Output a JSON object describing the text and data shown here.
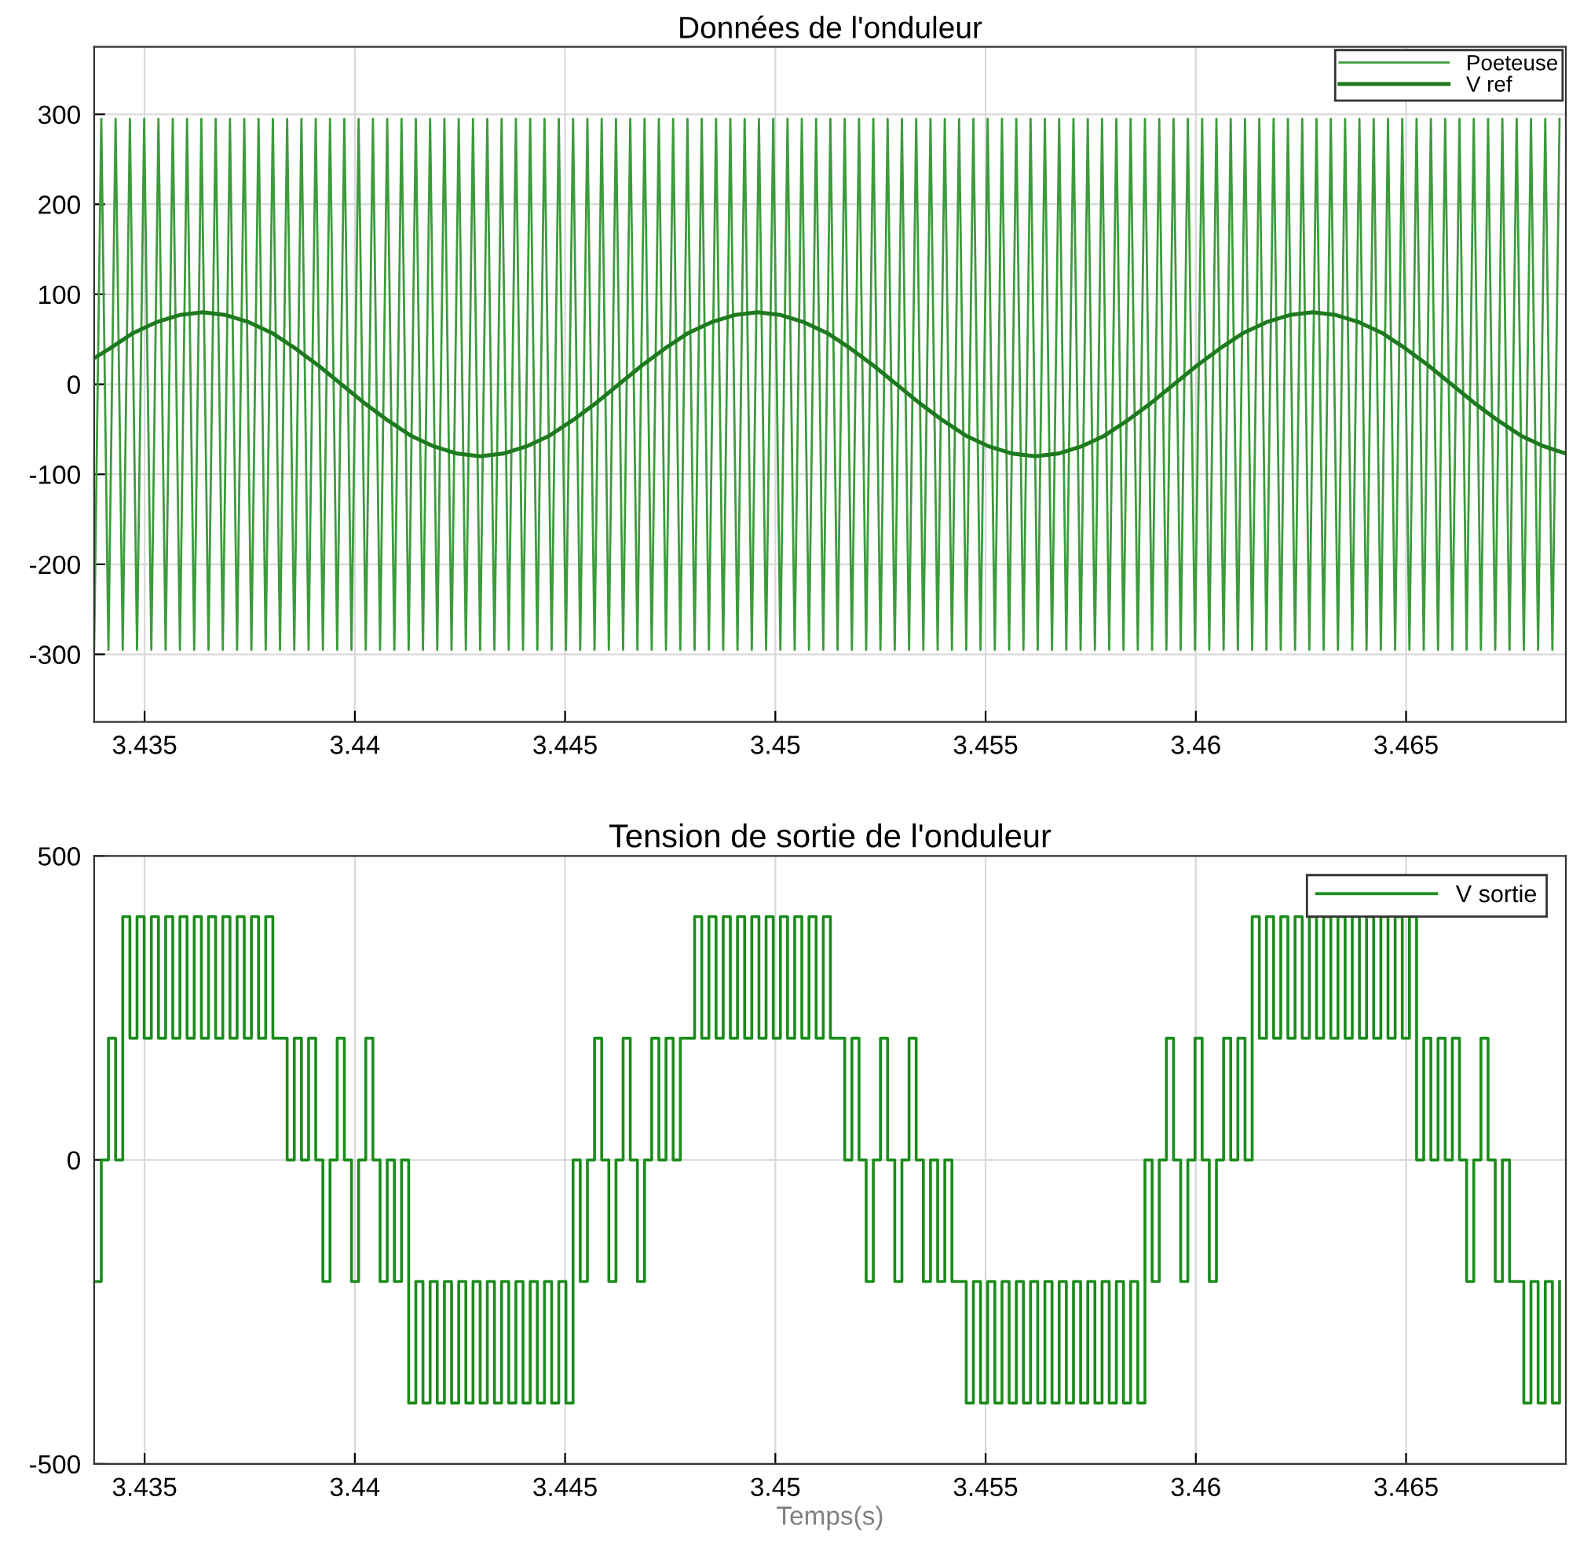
{
  "chart_data": [
    {
      "type": "line",
      "title": "Données de l'onduleur",
      "xlim": [
        3.4338,
        3.4688
      ],
      "xticks": [
        3.435,
        3.44,
        3.445,
        3.45,
        3.455,
        3.46,
        3.465
      ],
      "ylim": [
        -375,
        375
      ],
      "yticks": [
        -300,
        -200,
        -100,
        0,
        100,
        200,
        300
      ],
      "grid": true,
      "legend": "top right",
      "x": [
        3.4338,
        3.43397,
        3.43414,
        3.43431,
        3.43448,
        3.43465,
        3.43482,
        3.43499,
        3.43516,
        3.43533,
        3.4355,
        3.43567,
        3.43584,
        3.43601,
        3.43618,
        3.43635,
        3.43652,
        3.43669,
        3.43686,
        3.43703,
        3.4372,
        3.43737,
        3.43754,
        3.43771,
        3.43788,
        3.43805,
        3.43822,
        3.43839,
        3.43856,
        3.43873,
        3.4389,
        3.43907,
        3.43924,
        3.43941,
        3.43958,
        3.43975,
        3.43992,
        3.44009,
        3.44026,
        3.44043,
        3.4406,
        3.44077,
        3.44094,
        3.44111,
        3.44128,
        3.44145,
        3.44162,
        3.44179,
        3.44196,
        3.44213,
        3.4423,
        3.44247,
        3.44264,
        3.44281,
        3.44298,
        3.44315,
        3.44332,
        3.44349,
        3.44366,
        3.44383,
        3.444,
        3.44417,
        3.44434,
        3.44451,
        3.44468,
        3.44485,
        3.44502,
        3.44519,
        3.44536,
        3.44553,
        3.4457,
        3.44587,
        3.44604,
        3.44621,
        3.44638,
        3.44655,
        3.44672,
        3.44689,
        3.44706,
        3.44723,
        3.4474,
        3.44757,
        3.44774,
        3.44791,
        3.44808,
        3.44825,
        3.44842,
        3.44859,
        3.44876,
        3.44893,
        3.4491,
        3.44927,
        3.44944,
        3.44961,
        3.44978,
        3.44995,
        3.45012,
        3.45029,
        3.45046,
        3.45063,
        3.4508,
        3.45097,
        3.45114,
        3.45131,
        3.45148,
        3.45165,
        3.45182,
        3.45199,
        3.45216,
        3.45233,
        3.4525,
        3.45267,
        3.45284,
        3.45301,
        3.45318,
        3.45335,
        3.45352,
        3.45369,
        3.45386,
        3.45403,
        3.4542,
        3.45437,
        3.45454,
        3.45471,
        3.45488,
        3.45505,
        3.45522,
        3.45539,
        3.45556,
        3.45573,
        3.4559,
        3.45607,
        3.45624,
        3.45641,
        3.45658,
        3.45675,
        3.45692,
        3.45709,
        3.45726,
        3.45743,
        3.4576,
        3.45777,
        3.45794,
        3.45811,
        3.45828,
        3.45845,
        3.45862,
        3.45879,
        3.45896,
        3.45913,
        3.4593,
        3.45947,
        3.45964,
        3.45981,
        3.45998,
        3.46015,
        3.46032,
        3.46049,
        3.46066,
        3.46083,
        3.461,
        3.46117,
        3.46134,
        3.46151,
        3.46168,
        3.46185,
        3.46202,
        3.46219,
        3.46236,
        3.46253,
        3.4627,
        3.46287,
        3.46304,
        3.46321,
        3.46338,
        3.46355,
        3.46372,
        3.46389,
        3.46406,
        3.46423,
        3.4644,
        3.46457,
        3.46474,
        3.46491,
        3.46508,
        3.46525,
        3.46542,
        3.46559,
        3.46576,
        3.46593,
        3.4661,
        3.46627,
        3.46644,
        3.46661,
        3.46678,
        3.46695,
        3.46712,
        3.46729,
        3.46746,
        3.46763,
        3.4678,
        3.46797,
        3.46814,
        3.46831,
        3.46848,
        3.46865
      ],
      "series": [
        {
          "name": "Poeteuse",
          "color": "#3c9c3c",
          "values": [
            -295,
            295,
            -295,
            295,
            -295,
            295,
            -295,
            295,
            -295,
            295,
            -295,
            295,
            -295,
            295,
            -295,
            295,
            -295,
            295,
            -295,
            295,
            -295,
            295,
            -295,
            295,
            -295,
            295,
            -295,
            295,
            -295,
            295,
            -295,
            295,
            -295,
            295,
            -295,
            295,
            -295,
            295,
            -295,
            295,
            -295,
            295,
            -295,
            295,
            -295,
            295,
            -295,
            295,
            -295,
            295,
            -295,
            295,
            -295,
            295,
            -295,
            295,
            -295,
            295,
            -295,
            295,
            -295,
            295,
            -295,
            295,
            -295,
            295,
            -295,
            295,
            -295,
            295,
            -295,
            295,
            -295,
            295,
            -295,
            295,
            -295,
            295,
            -295,
            295,
            -295,
            295,
            -295,
            295,
            -295,
            295,
            -295,
            295,
            -295,
            295,
            -295,
            295,
            -295,
            295,
            -295,
            295,
            -295,
            295,
            -295,
            295,
            -295,
            295,
            -295,
            295,
            -295,
            295,
            -295,
            295,
            -295,
            295,
            -295,
            295,
            -295,
            295,
            -295,
            295,
            -295,
            295,
            -295,
            295,
            -295,
            295,
            -295,
            295,
            -295,
            295,
            -295,
            295,
            -295,
            295,
            -295,
            295,
            -295,
            295,
            -295,
            295,
            -295,
            295,
            -295,
            295,
            -295,
            295,
            -295,
            295,
            -295,
            295,
            -295,
            295,
            -295,
            295,
            -295,
            295,
            -295,
            295,
            -295,
            295,
            -295,
            295,
            -295,
            295,
            -295,
            295,
            -295,
            295,
            -295,
            295,
            -295,
            295,
            -295,
            295,
            -295,
            295,
            -295,
            295,
            -295,
            295,
            -295,
            295,
            -295,
            295,
            -295,
            295,
            -295,
            295,
            -295,
            295,
            -295,
            295,
            -295,
            295,
            -295,
            295,
            -295,
            295,
            -295,
            295,
            -295,
            295,
            -295,
            295,
            -295,
            295,
            -295,
            295,
            -295,
            295
          ]
        },
        {
          "name": "V ref",
          "color": "#1e7a1e",
          "x": [
            3.4338,
            3.43418,
            3.43473,
            3.43528,
            3.43583,
            3.43638,
            3.43693,
            3.43748,
            3.43803,
            3.43858,
            3.43913,
            3.43968,
            3.44023,
            3.44078,
            3.44133,
            3.44188,
            3.44243,
            3.44298,
            3.44353,
            3.44408,
            3.44463,
            3.44518,
            3.44573,
            3.44628,
            3.44683,
            3.44738,
            3.44793,
            3.44848,
            3.44903,
            3.44958,
            3.45013,
            3.45068,
            3.45123,
            3.45178,
            3.45233,
            3.45288,
            3.45343,
            3.45398,
            3.45453,
            3.45508,
            3.45563,
            3.45618,
            3.45673,
            3.45728,
            3.45783,
            3.45838,
            3.45893,
            3.45948,
            3.46003,
            3.46058,
            3.46113,
            3.46168,
            3.46223,
            3.46278,
            3.46333,
            3.46388,
            3.46443,
            3.46498,
            3.46553,
            3.46608,
            3.46663,
            3.46718,
            3.46773,
            3.46828,
            3.4688
          ],
          "values": [
            29,
            40,
            57,
            69,
            77,
            80,
            77,
            69,
            57,
            40,
            21,
            0,
            -21,
            -40,
            -57,
            -69,
            -77,
            -80,
            -77,
            -69,
            -57,
            -40,
            -21,
            0,
            21,
            40,
            57,
            69,
            77,
            80,
            77,
            69,
            57,
            40,
            21,
            0,
            -21,
            -40,
            -57,
            -69,
            -77,
            -80,
            -77,
            -69,
            -57,
            -40,
            -21,
            0,
            21,
            40,
            57,
            69,
            77,
            80,
            77,
            69,
            57,
            40,
            21,
            0,
            -21,
            -40,
            -57,
            -69,
            -77
          ]
        }
      ]
    },
    {
      "type": "step",
      "title": "Tension de sortie de l'onduleur",
      "xlabel": "Temps(s)",
      "xlim": [
        3.4338,
        3.4688
      ],
      "xticks": [
        3.435,
        3.44,
        3.445,
        3.45,
        3.455,
        3.46,
        3.465
      ],
      "ylim": [
        -500,
        500
      ],
      "yticks": [
        -500,
        0,
        500
      ],
      "grid": true,
      "legend": "top right",
      "x": [
        3.4338,
        3.43397,
        3.43414,
        3.43431,
        3.43448,
        3.43465,
        3.43482,
        3.43499,
        3.43516,
        3.43533,
        3.4355,
        3.43567,
        3.43584,
        3.43601,
        3.43618,
        3.43635,
        3.43652,
        3.43669,
        3.43686,
        3.43703,
        3.4372,
        3.43737,
        3.43754,
        3.43771,
        3.43788,
        3.43805,
        3.43822,
        3.43839,
        3.43856,
        3.43873,
        3.4389,
        3.43907,
        3.43924,
        3.43941,
        3.43958,
        3.43975,
        3.43992,
        3.44009,
        3.44026,
        3.44043,
        3.4406,
        3.44077,
        3.44094,
        3.44111,
        3.44128,
        3.44145,
        3.44162,
        3.44179,
        3.44196,
        3.44213,
        3.4423,
        3.44247,
        3.44264,
        3.44281,
        3.44298,
        3.44315,
        3.44332,
        3.44349,
        3.44366,
        3.44383,
        3.444,
        3.44417,
        3.44434,
        3.44451,
        3.44468,
        3.44485,
        3.44502,
        3.44519,
        3.44536,
        3.44553,
        3.4457,
        3.44587,
        3.44604,
        3.44621,
        3.44638,
        3.44655,
        3.44672,
        3.44689,
        3.44706,
        3.44723,
        3.4474,
        3.44757,
        3.44774,
        3.44791,
        3.44808,
        3.44825,
        3.44842,
        3.44859,
        3.44876,
        3.44893,
        3.4491,
        3.44927,
        3.44944,
        3.44961,
        3.44978,
        3.44995,
        3.45012,
        3.45029,
        3.45046,
        3.45063,
        3.4508,
        3.45097,
        3.45114,
        3.45131,
        3.45148,
        3.45165,
        3.45182,
        3.45199,
        3.45216,
        3.45233,
        3.4525,
        3.45267,
        3.45284,
        3.45301,
        3.45318,
        3.45335,
        3.45352,
        3.45369,
        3.45386,
        3.45403,
        3.4542,
        3.45437,
        3.45454,
        3.45471,
        3.45488,
        3.45505,
        3.45522,
        3.45539,
        3.45556,
        3.45573,
        3.4559,
        3.45607,
        3.45624,
        3.45641,
        3.45658,
        3.45675,
        3.45692,
        3.45709,
        3.45726,
        3.45743,
        3.4576,
        3.45777,
        3.45794,
        3.45811,
        3.45828,
        3.45845,
        3.45862,
        3.45879,
        3.45896,
        3.45913,
        3.4593,
        3.45947,
        3.45964,
        3.45981,
        3.45998,
        3.46015,
        3.46032,
        3.46049,
        3.46066,
        3.46083,
        3.461,
        3.46117,
        3.46134,
        3.46151,
        3.46168,
        3.46185,
        3.46202,
        3.46219,
        3.46236,
        3.46253,
        3.4627,
        3.46287,
        3.46304,
        3.46321,
        3.46338,
        3.46355,
        3.46372,
        3.46389,
        3.46406,
        3.46423,
        3.4644,
        3.46457,
        3.46474,
        3.46491,
        3.46508,
        3.46525,
        3.46542,
        3.46559,
        3.46576,
        3.46593,
        3.4661,
        3.46627,
        3.46644,
        3.46661,
        3.46678,
        3.46695,
        3.46712,
        3.46729,
        3.46746,
        3.46763,
        3.4678,
        3.46797,
        3.46814,
        3.46831,
        3.46848,
        3.46865
      ],
      "series": [
        {
          "name": "V sortie",
          "color": "#1a8c1a",
          "values": [
            -200,
            0,
            200,
            0,
            400,
            200,
            400,
            200,
            400,
            200,
            400,
            200,
            400,
            200,
            400,
            200,
            400,
            200,
            400,
            200,
            400,
            200,
            400,
            200,
            400,
            200,
            200,
            0,
            200,
            0,
            200,
            0,
            -200,
            0,
            200,
            0,
            -200,
            0,
            200,
            0,
            -200,
            0,
            -200,
            0,
            -400,
            -200,
            -400,
            -200,
            -400,
            -200,
            -400,
            -200,
            -400,
            -200,
            -400,
            -200,
            -400,
            -200,
            -400,
            -200,
            -400,
            -200,
            -400,
            -200,
            -400,
            -200,
            -400,
            0,
            -200,
            0,
            200,
            0,
            -200,
            0,
            200,
            0,
            -200,
            0,
            200,
            0,
            200,
            0,
            200,
            200,
            400,
            200,
            400,
            200,
            400,
            200,
            400,
            200,
            400,
            200,
            400,
            200,
            400,
            200,
            400,
            200,
            400,
            200,
            400,
            200,
            200,
            0,
            200,
            0,
            -200,
            0,
            200,
            0,
            -200,
            0,
            200,
            0,
            -200,
            0,
            -200,
            0,
            -200,
            -200,
            -400,
            -200,
            -400,
            -200,
            -400,
            -200,
            -400,
            -200,
            -400,
            -200,
            -400,
            -200,
            -400,
            -200,
            -400,
            -200,
            -400,
            -200,
            -400,
            -200,
            -400,
            -200,
            -400,
            -200,
            -400,
            0,
            -200,
            0,
            200,
            0,
            -200,
            0,
            200,
            0,
            -200,
            0,
            200,
            0,
            200,
            0,
            400,
            200,
            400,
            200,
            400,
            200,
            400,
            200,
            400,
            200,
            400,
            200,
            400,
            200,
            400,
            200,
            400,
            200,
            400,
            200,
            400,
            200,
            400,
            0,
            200,
            0,
            200,
            0,
            200,
            0,
            -200,
            0,
            200,
            0,
            -200,
            0,
            -200,
            -200,
            -400,
            -200,
            -400,
            -200,
            -400,
            -200
          ]
        }
      ]
    }
  ]
}
